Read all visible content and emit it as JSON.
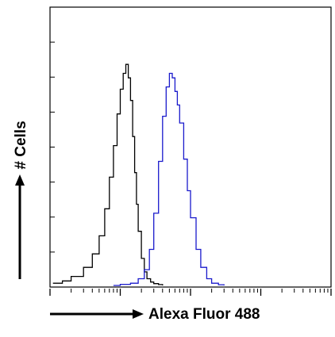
{
  "chart_data": {
    "type": "line",
    "title": "",
    "xlabel": "Alexa Fluor 488",
    "ylabel": "# Cells",
    "x_scale": "log",
    "xlim": [
      1,
      10000
    ],
    "ylim": [
      0,
      1
    ],
    "grid": false,
    "legend": "none",
    "series": [
      {
        "color": "#000000",
        "x": [
          1.1,
          1.5,
          2,
          3,
          4,
          5,
          6,
          7,
          8,
          9,
          10,
          11,
          12,
          13,
          14,
          15,
          16,
          17,
          18,
          20,
          22,
          24,
          27,
          30,
          35,
          40
        ],
        "y": [
          0.01,
          0.02,
          0.04,
          0.08,
          0.14,
          0.22,
          0.34,
          0.48,
          0.62,
          0.76,
          0.87,
          0.94,
          0.98,
          0.92,
          0.82,
          0.66,
          0.5,
          0.36,
          0.24,
          0.12,
          0.06,
          0.03,
          0.015,
          0.008,
          0.004,
          0.0
        ]
      },
      {
        "color": "#1a1acc",
        "x": [
          8,
          10,
          14,
          18,
          22,
          26,
          30,
          35,
          40,
          45,
          50,
          55,
          60,
          65,
          70,
          80,
          90,
          100,
          120,
          140,
          170,
          200,
          250,
          300
        ],
        "y": [
          0.0,
          0.005,
          0.01,
          0.03,
          0.07,
          0.16,
          0.32,
          0.55,
          0.75,
          0.88,
          0.94,
          0.92,
          0.86,
          0.8,
          0.72,
          0.56,
          0.42,
          0.3,
          0.16,
          0.08,
          0.03,
          0.01,
          0.003,
          0.0
        ]
      }
    ]
  }
}
